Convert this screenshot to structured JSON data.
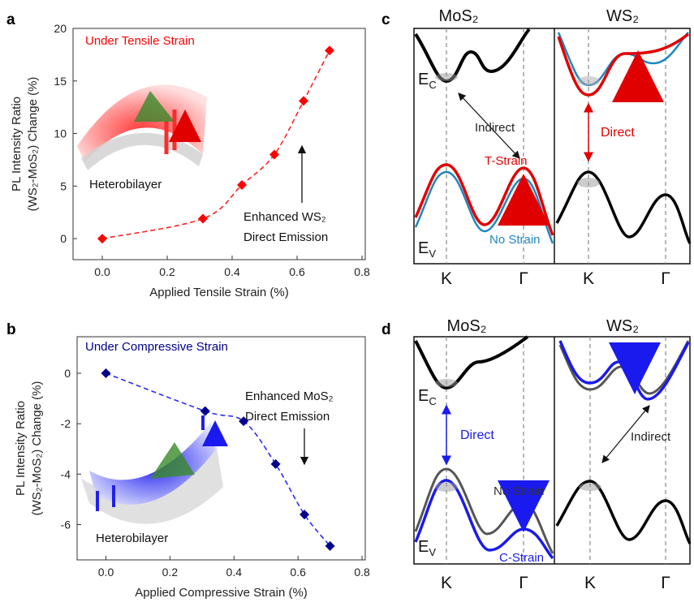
{
  "panels": [
    "a",
    "b",
    "c",
    "d"
  ],
  "chart_data": [
    {
      "type": "scatter",
      "x": [
        0,
        0.31,
        0.43,
        0.53,
        0.62,
        0.7
      ],
      "values": [
        0,
        1.9,
        5.1,
        8.0,
        13.1,
        17.9
      ],
      "color": "#ff0000",
      "line_color": "#ff2020",
      "xlabel": "Applied Tensile Strain (%)",
      "ylabel": [
        "PL Intensity Ratio",
        "(WS₂-MoS₂) Change (%)"
      ],
      "xlim": [
        -0.09,
        0.81
      ],
      "ylim": [
        -2,
        20
      ],
      "xticks": [
        {
          "value": 0,
          "label": "0.0"
        },
        0.2,
        0.4,
        0.6,
        0.8
      ],
      "yticks": [
        0,
        5,
        10,
        15,
        20
      ],
      "annotations": [
        "Under Tensile Strain",
        "Heterobilayer",
        "Enhanced WS₂",
        "Direct Emission"
      ]
    },
    {
      "type": "scatter",
      "x": [
        0,
        0.31,
        0.43,
        0.53,
        0.62,
        0.7
      ],
      "values": [
        0,
        -1.5,
        -1.9,
        -3.6,
        -5.6,
        -6.85
      ],
      "color": "#00008b",
      "line_color": "#2a2aff",
      "xlabel": "Applied Compressive Strain (%)",
      "ylabel": [
        "PL Intensity Ratio",
        "(WS₂-MoS₂) Change (%)"
      ],
      "xlim": [
        -0.09,
        0.81
      ],
      "ylim": [
        -7.4,
        1.45
      ],
      "xticks": [
        {
          "value": 0,
          "label": "0.0"
        },
        0.2,
        0.4,
        0.6,
        0.8
      ],
      "yticks": [
        0,
        -2,
        -4,
        -6
      ],
      "annotations": [
        "Under Compressive Strain",
        "Heterobilayer",
        "Enhanced MoS₂",
        "Direct Emission"
      ]
    }
  ],
  "diagrams": [
    {
      "titles": [
        "MoS₂",
        "WS₂"
      ],
      "ec": {
        "main": "E",
        "sub": "C"
      },
      "ev": {
        "main": "E",
        "sub": "V"
      },
      "texts": [
        "Indirect",
        "T-Strain",
        "No Strain",
        "Direct"
      ],
      "kpoints": [
        "K",
        "Γ",
        "K",
        "Γ"
      ]
    },
    {
      "titles": [
        "MoS₂",
        "WS₂"
      ],
      "ec": {
        "main": "E",
        "sub": "C"
      },
      "ev": {
        "main": "E",
        "sub": "V"
      },
      "texts": [
        "Direct",
        "No Strain",
        "C-Strain",
        "Indirect"
      ],
      "kpoints": [
        "K",
        "Γ",
        "K",
        "Γ"
      ]
    }
  ]
}
